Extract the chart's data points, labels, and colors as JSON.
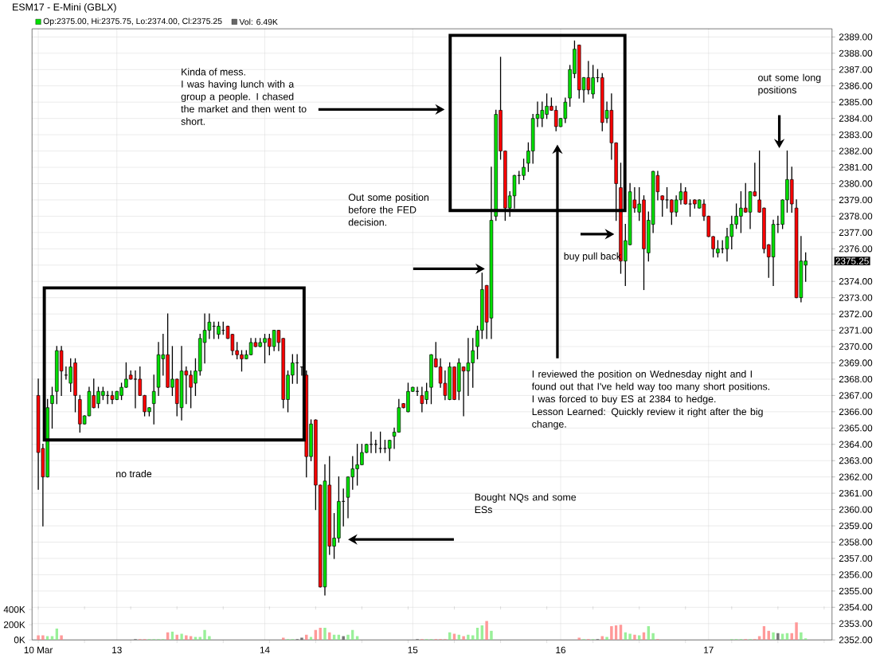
{
  "chart_data": [
    {
      "type": "candlestick",
      "title": "ESM17 - E-Mini (GBLX)",
      "categories": [
        "10 Mar",
        null,
        null,
        null,
        null,
        null,
        null,
        null,
        null,
        null,
        null,
        null,
        null,
        null,
        null,
        null,
        null,
        "13",
        null,
        null,
        null,
        null,
        null,
        null,
        null,
        null,
        null,
        null,
        null,
        null,
        null,
        null,
        null,
        null,
        null,
        null,
        null,
        null,
        null,
        null,
        null,
        null,
        null,
        null,
        null,
        null,
        null,
        null,
        null,
        "14",
        null,
        null,
        null,
        null,
        null,
        null,
        null,
        null,
        null,
        null,
        null,
        null,
        null,
        null,
        null,
        null,
        null,
        null,
        null,
        null,
        null,
        null,
        null,
        null,
        null,
        null,
        null,
        null,
        null,
        null,
        null,
        "15",
        null,
        null,
        null,
        null,
        null,
        null,
        null,
        null,
        null,
        null,
        null,
        null,
        null,
        null,
        null,
        null,
        null,
        null,
        null,
        null,
        null,
        null,
        null,
        null,
        null,
        null,
        null,
        null,
        null,
        null,
        null,
        "16",
        null,
        null,
        null,
        null,
        null,
        null,
        null,
        null,
        null,
        null,
        null,
        null,
        null,
        null,
        null,
        null,
        null,
        null,
        null,
        null,
        null,
        null,
        null,
        null,
        null,
        null,
        null,
        null,
        null,
        null,
        null,
        "17",
        null,
        null,
        null,
        null,
        null,
        null,
        null,
        null,
        null,
        null,
        null,
        null,
        null,
        null,
        null,
        null,
        null,
        null,
        null,
        null,
        null
      ],
      "ohlc": [
        [
          2367,
          2368,
          2361.25,
          2363.5
        ],
        [
          2363.75,
          2364,
          2359,
          2362
        ],
        [
          2362,
          2366.75,
          2362,
          2366.25
        ],
        [
          2366.5,
          2367.5,
          2365,
          2367
        ],
        [
          2367.25,
          2370,
          2366.5,
          2369.75
        ],
        [
          2369.75,
          2370,
          2367,
          2368.5
        ],
        [
          2368.25,
          2368.75,
          2368,
          2368.25
        ],
        [
          2367.75,
          2369.25,
          2367.25,
          2368.75
        ],
        [
          2369,
          2369.25,
          2366,
          2367
        ],
        [
          2366.75,
          2367,
          2364.75,
          2365.25
        ],
        [
          2365.25,
          2365.75,
          2365.25,
          2365.75
        ],
        [
          2365.75,
          2367.5,
          2365.75,
          2367.25
        ],
        [
          2367,
          2368,
          2366.25,
          2366.25
        ],
        [
          2366.5,
          2367.5,
          2366.25,
          2367.25
        ],
        [
          2367,
          2367.5,
          2366.75,
          2367.25
        ],
        [
          2367,
          2367.25,
          2366.5,
          2367
        ],
        [
          2367,
          2367.25,
          2366.5,
          2366.75
        ],
        [
          2366.75,
          2367.25,
          2366.75,
          2367.25
        ],
        [
          2367,
          2367.75,
          2366.75,
          2367.5
        ],
        [
          2367.5,
          2369,
          2367.5,
          2368
        ],
        [
          2368.25,
          2368.5,
          2368,
          2368
        ],
        [
          2368,
          2368.5,
          2366.25,
          2368
        ],
        [
          2368,
          2368.75,
          2367,
          2367
        ],
        [
          2367,
          2367,
          2365.75,
          2366
        ],
        [
          2366,
          2366.25,
          2365.75,
          2366.25
        ],
        [
          2366.5,
          2368.25,
          2365.25,
          2367.25
        ],
        [
          2367.5,
          2370.25,
          2367,
          2369.5
        ],
        [
          2369.25,
          2370.75,
          2368.25,
          2369.5
        ],
        [
          2369.5,
          2372,
          2367.5,
          2367.5
        ],
        [
          2367.5,
          2370,
          2367,
          2368
        ],
        [
          2368,
          2368,
          2365.75,
          2366.5
        ],
        [
          2366.25,
          2370,
          2365.5,
          2368.5
        ],
        [
          2368.5,
          2368.75,
          2366.5,
          2368.25
        ],
        [
          2368.25,
          2368.5,
          2366.25,
          2367.5
        ],
        [
          2367.75,
          2369.25,
          2367,
          2368.5
        ],
        [
          2368.5,
          2370.75,
          2368.25,
          2370.5
        ],
        [
          2370.25,
          2372,
          2369,
          2371
        ],
        [
          2371,
          2372,
          2370.5,
          2371.5
        ],
        [
          2371.25,
          2371.5,
          2370.5,
          2371.25
        ],
        [
          2370.75,
          2371.5,
          2370.5,
          2371.25
        ],
        [
          2371,
          2371.5,
          2370.75,
          2371
        ],
        [
          2371.25,
          2371.25,
          2370.5,
          2370.5
        ],
        [
          2370.75,
          2370.75,
          2369.5,
          2369.75
        ],
        [
          2369.75,
          2370.25,
          2369.25,
          2369.5
        ],
        [
          2369.5,
          2369.75,
          2368.5,
          2369.25
        ],
        [
          2369.25,
          2369.75,
          2369.25,
          2369.5
        ],
        [
          2369.5,
          2370.5,
          2369.5,
          2370.25
        ],
        [
          2370.25,
          2370.5,
          2370,
          2370
        ],
        [
          2370,
          2370.5,
          2370,
          2370.25
        ],
        [
          2370.25,
          2370.75,
          2369,
          2370.5
        ],
        [
          2370.5,
          2370.75,
          2369.5,
          2370
        ],
        [
          2370,
          2371,
          2369.75,
          2371
        ],
        [
          2371,
          2371,
          2369.75,
          2370.25
        ],
        [
          2370.5,
          2370.5,
          2366.25,
          2366.75
        ],
        [
          2366.75,
          2368.5,
          2366,
          2368.25
        ],
        [
          2368.25,
          2369.5,
          2367.75,
          2369
        ],
        [
          2369,
          2369.5,
          2367.75,
          2369
        ],
        [
          2368.75,
          2368.75,
          2368.25,
          2368.75
        ],
        [
          2368.25,
          2368.5,
          2362,
          2363.25
        ],
        [
          2363.25,
          2365.5,
          2363,
          2365.25
        ],
        [
          2365.5,
          2365.5,
          2360,
          2361.5
        ],
        [
          2361.5,
          2361.5,
          2355.25,
          2355.25
        ],
        [
          2355.25,
          2362.75,
          2354.75,
          2361.75
        ],
        [
          2361.5,
          2363.25,
          2357.25,
          2357.75
        ],
        [
          2357.75,
          2359.75,
          2357,
          2358.25
        ],
        [
          2358.25,
          2362,
          2358,
          2360.5
        ],
        [
          2360.5,
          2361.25,
          2359,
          2360.5
        ],
        [
          2360.75,
          2362,
          2359.5,
          2362
        ],
        [
          2362,
          2363.25,
          2361.25,
          2362.5
        ],
        [
          2362.5,
          2364,
          2361.5,
          2362.75
        ],
        [
          2362.75,
          2364,
          2362.75,
          2363.5
        ],
        [
          2363.5,
          2364,
          2363.5,
          2364
        ],
        [
          2364,
          2364.75,
          2363.5,
          2364
        ],
        [
          2364,
          2364.25,
          2363.5,
          2364
        ],
        [
          2363.75,
          2364.75,
          2363.5,
          2363.75
        ],
        [
          2363.75,
          2364.25,
          2363.5,
          2363.75
        ],
        [
          2363.75,
          2364.25,
          2363,
          2364.25
        ],
        [
          2364.5,
          2365,
          2363.75,
          2364.75
        ],
        [
          2364.75,
          2366.75,
          2364.75,
          2366.25
        ],
        [
          2366.5,
          2366.5,
          2366.25,
          2366.25
        ],
        [
          2366,
          2367.75,
          2366,
          2367.25
        ],
        [
          2367.25,
          2367.5,
          2367.25,
          2367.5
        ],
        [
          2367.25,
          2367.5,
          2367,
          2367.25
        ],
        [
          2367,
          2367.5,
          2366,
          2366.5
        ],
        [
          2366.75,
          2367.75,
          2366.5,
          2367.25
        ],
        [
          2367.5,
          2369.5,
          2366.5,
          2369.5
        ],
        [
          2369.25,
          2370.25,
          2368.75,
          2368.75
        ],
        [
          2368.75,
          2369.25,
          2367.5,
          2367.75
        ],
        [
          2367.75,
          2368.5,
          2366.75,
          2367
        ],
        [
          2366.75,
          2369,
          2366.75,
          2368.75
        ],
        [
          2368.75,
          2368.75,
          2366.75,
          2366.75
        ],
        [
          2367.25,
          2369.25,
          2366.75,
          2369
        ],
        [
          2368.75,
          2368.75,
          2365.75,
          2368.5
        ],
        [
          2368.5,
          2370.5,
          2367,
          2369
        ],
        [
          2369,
          2370.5,
          2367.5,
          2369.75
        ],
        [
          2370,
          2371.25,
          2369.25,
          2371
        ],
        [
          2371,
          2374.5,
          2370.5,
          2373.5
        ],
        [
          2373.75,
          2373.75,
          2370.5,
          2371.5
        ],
        [
          2371.75,
          2381,
          2370.5,
          2377.75
        ],
        [
          2378,
          2384.5,
          2377.75,
          2384.25
        ],
        [
          2384.5,
          2387.75,
          2381.5,
          2382
        ],
        [
          2382,
          2382,
          2377.75,
          2378.5
        ],
        [
          2378.5,
          2379.5,
          2378,
          2379.25
        ],
        [
          2379.25,
          2380.5,
          2378.5,
          2380.5
        ],
        [
          2380.5,
          2380.75,
          2380,
          2380.5
        ],
        [
          2380.5,
          2381.5,
          2380.25,
          2381
        ],
        [
          2381.25,
          2382.5,
          2380.75,
          2382
        ],
        [
          2382,
          2384.25,
          2381.25,
          2384
        ],
        [
          2384,
          2385,
          2383.5,
          2384.25
        ],
        [
          2384,
          2385,
          2383.5,
          2384.5
        ],
        [
          2384.25,
          2385.5,
          2384,
          2384.75
        ],
        [
          2384.75,
          2385.25,
          2384.5,
          2384.5
        ],
        [
          2384.5,
          2384.75,
          2383.25,
          2383.5
        ],
        [
          2383.5,
          2384,
          2383.5,
          2384
        ],
        [
          2384,
          2385.25,
          2383.75,
          2385
        ],
        [
          2385.25,
          2387.25,
          2384.75,
          2387
        ],
        [
          2386.75,
          2388.75,
          2386.5,
          2388.25
        ],
        [
          2388.5,
          2388.5,
          2385.25,
          2385.75
        ],
        [
          2385.75,
          2386.5,
          2385,
          2386.5
        ],
        [
          2386.5,
          2387.5,
          2385.5,
          2385.75
        ],
        [
          2385.5,
          2387.25,
          2385.25,
          2386.5
        ],
        [
          2386.5,
          2387,
          2386.25,
          2386.5
        ],
        [
          2386.5,
          2386.75,
          2383.25,
          2383.75
        ],
        [
          2384,
          2385,
          2383.75,
          2384.5
        ],
        [
          2384.5,
          2385.5,
          2381.5,
          2382.5
        ],
        [
          2382.5,
          2382.5,
          2377.75,
          2380
        ],
        [
          2379.75,
          2381.25,
          2374.5,
          2375.25
        ],
        [
          2375.25,
          2377.5,
          2373.75,
          2376.5
        ],
        [
          2376.25,
          2380,
          2376.25,
          2379.5
        ],
        [
          2379,
          2379.75,
          2378.25,
          2378.5
        ],
        [
          2378.25,
          2379.75,
          2377.75,
          2378.75
        ],
        [
          2379,
          2379.25,
          2373.5,
          2376
        ],
        [
          2375.75,
          2378.25,
          2375.25,
          2377.75
        ],
        [
          2377.5,
          2380.75,
          2377,
          2380.75
        ],
        [
          2380.5,
          2380.75,
          2379,
          2379.5
        ],
        [
          2379.25,
          2379.25,
          2378,
          2379
        ],
        [
          2379,
          2379.75,
          2378.5,
          2379
        ],
        [
          2379,
          2379,
          2377.5,
          2378.25
        ],
        [
          2378.25,
          2379.25,
          2378,
          2379
        ],
        [
          2379,
          2380,
          2378.75,
          2379.5
        ],
        [
          2379.5,
          2379.75,
          2378.75,
          2378.75
        ],
        [
          2378.75,
          2379,
          2378,
          2378.75
        ],
        [
          2379,
          2379,
          2378.5,
          2378.75
        ],
        [
          2378.5,
          2379,
          2378.5,
          2379
        ],
        [
          2378.75,
          2379,
          2377.75,
          2378
        ],
        [
          2378,
          2378,
          2376.75,
          2376.75
        ],
        [
          2376.75,
          2376.75,
          2375.5,
          2376
        ],
        [
          2375.75,
          2376.5,
          2375.5,
          2376
        ],
        [
          2376,
          2376.5,
          2375.75,
          2376
        ],
        [
          2376,
          2377.25,
          2375.25,
          2376.75
        ],
        [
          2376.75,
          2378,
          2376,
          2377.5
        ],
        [
          2377.5,
          2378.75,
          2377.25,
          2378
        ],
        [
          2378,
          2379.5,
          2377,
          2378.5
        ],
        [
          2378.5,
          2380,
          2378.25,
          2378.25
        ],
        [
          2378.25,
          2379.5,
          2377.25,
          2379.5
        ],
        [
          2379.5,
          2381.25,
          2379.25,
          2379.25
        ],
        [
          2379,
          2382,
          2378.25,
          2378.25
        ],
        [
          2378.5,
          2378.5,
          2375.75,
          2376
        ],
        [
          2376.25,
          2376.25,
          2374.25,
          2375.5
        ],
        [
          2375.5,
          2377.75,
          2373.75,
          2377.5
        ],
        [
          2377.5,
          2378,
          2377,
          2377.5
        ],
        [
          2377.5,
          2379,
          2377.25,
          2379
        ],
        [
          2379,
          2382,
          2378.25,
          2380.25
        ],
        [
          2380.25,
          2381,
          2378.25,
          2378.75
        ],
        [
          2378.5,
          2379,
          2373,
          2373
        ],
        [
          2373,
          2376.75,
          2372.75,
          2375.25
        ],
        [
          2375,
          2375.75,
          2374,
          2375.25
        ]
      ],
      "colors": [
        "#ff0000",
        "#ff0000",
        "#00e000",
        "#00e000",
        "#00e000",
        "#ff0000",
        "#000000",
        "#00e000",
        "#ff0000",
        "#ff0000",
        "#00e000",
        "#00e000",
        "#ff0000",
        "#00e000",
        "#00e000",
        "#000000",
        "#ff0000",
        "#00e000",
        "#00e000",
        "#00e000",
        "#ff0000",
        "#000000",
        "#ff0000",
        "#ff0000",
        "#00e000",
        "#00e000",
        "#00e000",
        "#00e000",
        "#ff0000",
        "#00e000",
        "#ff0000",
        "#00e000",
        "#ff0000",
        "#ff0000",
        "#00e000",
        "#00e000",
        "#00e000",
        "#00e000",
        "#000000",
        "#00e000",
        "#000000",
        "#ff0000",
        "#ff0000",
        "#ff0000",
        "#ff0000",
        "#00e000",
        "#00e000",
        "#ff0000",
        "#00e000",
        "#00e000",
        "#ff0000",
        "#00e000",
        "#ff0000",
        "#ff0000",
        "#00e000",
        "#00e000",
        "#000000",
        "#000000",
        "#ff0000",
        "#00e000",
        "#ff0000",
        "#ff0000",
        "#00e000",
        "#ff0000",
        "#00e000",
        "#00e000",
        "#000000",
        "#00e000",
        "#00e000",
        "#00e000",
        "#00e000",
        "#00e000",
        "#000000",
        "#000000",
        "#000000",
        "#000000",
        "#00e000",
        "#00e000",
        "#00e000",
        "#ff0000",
        "#00e000",
        "#00e000",
        "#000000",
        "#ff0000",
        "#00e000",
        "#00e000",
        "#ff0000",
        "#ff0000",
        "#ff0000",
        "#00e000",
        "#ff0000",
        "#00e000",
        "#ff0000",
        "#00e000",
        "#00e000",
        "#00e000",
        "#00e000",
        "#ff0000",
        "#00e000",
        "#00e000",
        "#ff0000",
        "#ff0000",
        "#00e000",
        "#00e000",
        "#000000",
        "#00e000",
        "#00e000",
        "#00e000",
        "#00e000",
        "#00e000",
        "#00e000",
        "#ff0000",
        "#ff0000",
        "#00e000",
        "#00e000",
        "#00e000",
        "#00e000",
        "#ff0000",
        "#00e000",
        "#ff0000",
        "#00e000",
        "#000000",
        "#ff0000",
        "#00e000",
        "#ff0000",
        "#ff0000",
        "#ff0000",
        "#00e000",
        "#00e000",
        "#ff0000",
        "#00e000",
        "#ff0000",
        "#00e000",
        "#00e000",
        "#ff0000",
        "#ff0000",
        "#000000",
        "#ff0000",
        "#00e000",
        "#00e000",
        "#ff0000",
        "#000000",
        "#ff0000",
        "#00e000",
        "#ff0000",
        "#ff0000",
        "#ff0000",
        "#00e000",
        "#000000",
        "#00e000",
        "#00e000",
        "#00e000",
        "#00e000",
        "#ff0000",
        "#00e000",
        "#ff0000",
        "#ff0000",
        "#ff0000",
        "#ff0000",
        "#00e000",
        "#000000",
        "#00e000",
        "#00e000",
        "#ff0000",
        "#ff0000",
        "#00e000",
        "#00e000"
      ],
      "ylim": [
        2352,
        2389.5
      ],
      "yticks": [
        {
          "value": 2352,
          "label": "2352.00"
        },
        {
          "value": 2353,
          "label": "2353.00"
        },
        {
          "value": 2354,
          "label": "2354.00"
        },
        {
          "value": 2355,
          "label": "2355.00"
        },
        {
          "value": 2356,
          "label": "2356.00"
        },
        {
          "value": 2357,
          "label": "2357.00"
        },
        {
          "value": 2358,
          "label": "2358.00"
        },
        {
          "value": 2359,
          "label": "2359.00"
        },
        {
          "value": 2360,
          "label": "2360.00"
        },
        {
          "value": 2361,
          "label": "2361.00"
        },
        {
          "value": 2362,
          "label": "2362.00"
        },
        {
          "value": 2363,
          "label": "2363.00"
        },
        {
          "value": 2364,
          "label": "2364.00"
        },
        {
          "value": 2365,
          "label": "2365.00"
        },
        {
          "value": 2366,
          "label": "2366.00"
        },
        {
          "value": 2367,
          "label": "2367.00"
        },
        {
          "value": 2368,
          "label": "2368.00"
        },
        {
          "value": 2369,
          "label": "2369.00"
        },
        {
          "value": 2370,
          "label": "2370.00"
        },
        {
          "value": 2371,
          "label": "2371.00"
        },
        {
          "value": 2372,
          "label": "2372.00"
        },
        {
          "value": 2373,
          "label": "2373.00"
        },
        {
          "value": 2374,
          "label": "2374.00"
        },
        {
          "value": 2375,
          "label": null
        },
        {
          "value": 2376,
          "label": "2376.00"
        },
        {
          "value": 2377,
          "label": "2377.00"
        },
        {
          "value": 2378,
          "label": "2378.00"
        },
        {
          "value": 2379,
          "label": "2379.00"
        },
        {
          "value": 2380,
          "label": "2380.00"
        },
        {
          "value": 2381,
          "label": "2381.00"
        },
        {
          "value": 2382,
          "label": "2382.00"
        },
        {
          "value": 2383,
          "label": "2383.00"
        },
        {
          "value": 2384,
          "label": "2384.00"
        },
        {
          "value": 2385,
          "label": "2385.00"
        },
        {
          "value": 2386,
          "label": "2386.00"
        },
        {
          "value": 2387,
          "label": "2387.00"
        },
        {
          "value": 2388,
          "label": "2388.00"
        },
        {
          "value": 2389,
          "label": "2389.00"
        }
      ],
      "grid": true,
      "annotations": [
        "Kinda of mess.",
        "I was having lunch with a group a people. I chased the market and then went to short.",
        "Out some position before the FED decision.",
        "buy pull back",
        "out some long positions",
        "I reviewed the position on Wednesday night and I found out that I've held way too many short positions. I was forced to buy ES at 2384 to hedge.",
        "Lesson Learned: Quickly review it right after the big change.",
        "no trade",
        "Bought NQs and some ESs",
        "Op:2375.00, Hi:2375.75, Lo:2374.00, Cl:2375.25",
        "Vol: 6.49K",
        "2375.25"
      ]
    },
    {
      "type": "bar",
      "categories": [
        null,
        null,
        null,
        null,
        null,
        null,
        null,
        null,
        null,
        null,
        null,
        null,
        null,
        null,
        null,
        null,
        null,
        null,
        null,
        null,
        null,
        null,
        null,
        null,
        null,
        null,
        null,
        null,
        null,
        null,
        null,
        null,
        null,
        null,
        null,
        null,
        null,
        null,
        null,
        null,
        null,
        null,
        null,
        null,
        null,
        null,
        null,
        null,
        null,
        null,
        null,
        null,
        null,
        null,
        null,
        null,
        null,
        null,
        null,
        null,
        null,
        null,
        null,
        null,
        null,
        null,
        null,
        null,
        null,
        null,
        null,
        null,
        null,
        null,
        null,
        null,
        null,
        null,
        null,
        null,
        null,
        null,
        null,
        null,
        null,
        null,
        null,
        null,
        null,
        null,
        null,
        null,
        null,
        null,
        null,
        null,
        null,
        null,
        null,
        null,
        null,
        null,
        null,
        null,
        null,
        null,
        null,
        null,
        null,
        null,
        null,
        null,
        null,
        null,
        null,
        null,
        null,
        null,
        null,
        null,
        null,
        null,
        null,
        null,
        null,
        null,
        null,
        null,
        null,
        null,
        null,
        null,
        null,
        null,
        null,
        null,
        null,
        null,
        null,
        null,
        null,
        null,
        null,
        null,
        null,
        null,
        null,
        null,
        null,
        null,
        null,
        null,
        null,
        null,
        null,
        null,
        null,
        null,
        null,
        null,
        null,
        null,
        null,
        null,
        null,
        null,
        null
      ],
      "values": [
        60000,
        60000,
        50000,
        50000,
        150000,
        60000,
        0,
        0,
        0,
        0,
        0,
        0,
        0,
        0,
        0,
        0,
        0,
        0,
        0,
        0,
        0,
        10000,
        10000,
        10000,
        10000,
        10000,
        10000,
        10000,
        100000,
        110000,
        70000,
        80000,
        60000,
        50000,
        40000,
        40000,
        130000,
        50000,
        0,
        0,
        0,
        0,
        0,
        0,
        0,
        0,
        0,
        0,
        0,
        0,
        0,
        0,
        0,
        30000,
        10000,
        10000,
        10000,
        30000,
        70000,
        40000,
        130000,
        160000,
        160000,
        100000,
        70000,
        70000,
        50000,
        70000,
        130000,
        50000,
        0,
        0,
        0,
        0,
        0,
        0,
        0,
        0,
        0,
        0,
        0,
        0,
        10000,
        10000,
        10000,
        10000,
        10000,
        10000,
        10000,
        100000,
        80000,
        70000,
        50000,
        70000,
        60000,
        160000,
        190000,
        250000,
        120000,
        0,
        0,
        0,
        0,
        0,
        0,
        0,
        0,
        0,
        0,
        0,
        0,
        0,
        0,
        0,
        0,
        0,
        0,
        30000,
        10000,
        10000,
        10000,
        10000,
        50000,
        40000,
        180000,
        190000,
        200000,
        100000,
        80000,
        70000,
        60000,
        100000,
        180000,
        90000,
        10000,
        0,
        0,
        0,
        0,
        0,
        0,
        0,
        0,
        0,
        0,
        0,
        0,
        0,
        0,
        0,
        10000,
        10000,
        10000,
        10000,
        10000,
        10000,
        50000,
        180000,
        120000,
        100000,
        90000,
        80000,
        90000,
        90000,
        230000,
        100000,
        20000
      ],
      "colors": [
        "#ff9999",
        "#ff9999",
        "#99f099",
        "#99f099",
        "#99f099",
        "#ff9999",
        "#777777",
        "#99f099",
        "#ff9999",
        "#ff9999",
        "#99f099",
        "#99f099",
        "#ff9999",
        "#99f099",
        "#99f099",
        "#777777",
        "#ff9999",
        "#99f099",
        "#99f099",
        "#99f099",
        "#ff9999",
        "#777777",
        "#ff9999",
        "#ff9999",
        "#99f099",
        "#99f099",
        "#99f099",
        "#99f099",
        "#ff9999",
        "#99f099",
        "#ff9999",
        "#99f099",
        "#ff9999",
        "#ff9999",
        "#99f099",
        "#99f099",
        "#99f099",
        "#99f099",
        "#777777",
        "#99f099",
        "#777777",
        "#ff9999",
        "#ff9999",
        "#ff9999",
        "#ff9999",
        "#99f099",
        "#99f099",
        "#ff9999",
        "#99f099",
        "#99f099",
        "#ff9999",
        "#99f099",
        "#ff9999",
        "#ff9999",
        "#99f099",
        "#99f099",
        "#777777",
        "#777777",
        "#ff9999",
        "#99f099",
        "#ff9999",
        "#ff9999",
        "#99f099",
        "#ff9999",
        "#99f099",
        "#99f099",
        "#777777",
        "#99f099",
        "#99f099",
        "#99f099",
        "#99f099",
        "#99f099",
        "#777777",
        "#777777",
        "#777777",
        "#777777",
        "#99f099",
        "#99f099",
        "#99f099",
        "#ff9999",
        "#99f099",
        "#99f099",
        "#777777",
        "#ff9999",
        "#99f099",
        "#99f099",
        "#ff9999",
        "#ff9999",
        "#ff9999",
        "#99f099",
        "#ff9999",
        "#99f099",
        "#ff9999",
        "#99f099",
        "#99f099",
        "#99f099",
        "#99f099",
        "#ff9999",
        "#99f099",
        "#99f099",
        "#ff9999",
        "#ff9999",
        "#99f099",
        "#99f099",
        "#777777",
        "#99f099",
        "#99f099",
        "#99f099",
        "#99f099",
        "#99f099",
        "#99f099",
        "#ff9999",
        "#ff9999",
        "#99f099",
        "#99f099",
        "#99f099",
        "#99f099",
        "#ff9999",
        "#99f099",
        "#ff9999",
        "#99f099",
        "#777777",
        "#ff9999",
        "#99f099",
        "#ff9999",
        "#ff9999",
        "#ff9999",
        "#99f099",
        "#99f099",
        "#ff9999",
        "#99f099",
        "#ff9999",
        "#99f099",
        "#99f099",
        "#ff9999",
        "#ff9999",
        "#777777",
        "#ff9999",
        "#99f099",
        "#99f099",
        "#ff9999",
        "#777777",
        "#ff9999",
        "#99f099",
        "#ff9999",
        "#ff9999",
        "#ff9999",
        "#99f099",
        "#777777",
        "#99f099",
        "#99f099",
        "#99f099",
        "#99f099",
        "#ff9999",
        "#99f099",
        "#ff9999",
        "#ff9999",
        "#ff9999",
        "#ff9999",
        "#99f099",
        "#777777",
        "#99f099",
        "#99f099",
        "#ff9999",
        "#ff9999",
        "#99f099",
        "#99f099"
      ],
      "ylim": [
        0,
        400000
      ],
      "yticks": [
        {
          "value": 0,
          "label": "0K"
        },
        {
          "value": 200000,
          "label": "200K"
        },
        {
          "value": 400000,
          "label": "400K"
        }
      ]
    }
  ]
}
